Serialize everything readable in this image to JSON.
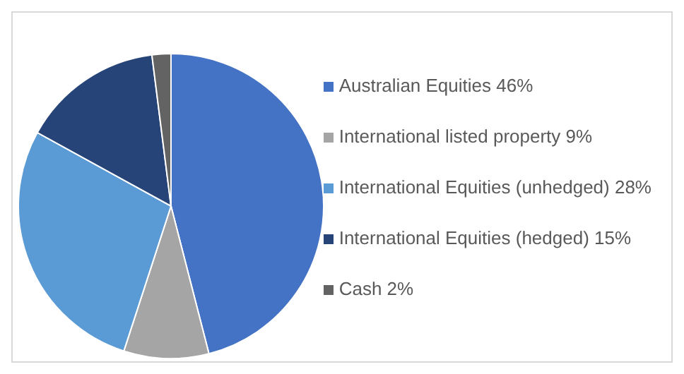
{
  "chart_data": {
    "type": "pie",
    "categories": [
      "Australian Equities 46%",
      "International listed property 9%",
      "International Equities (unhedged) 28%",
      "International Equities (hedged) 15%",
      "Cash 2%"
    ],
    "values": [
      46,
      9,
      28,
      15,
      2
    ],
    "colors": [
      "#4472c4",
      "#a5a5a5",
      "#5b9bd5",
      "#264478",
      "#636363"
    ],
    "legend": "right"
  }
}
